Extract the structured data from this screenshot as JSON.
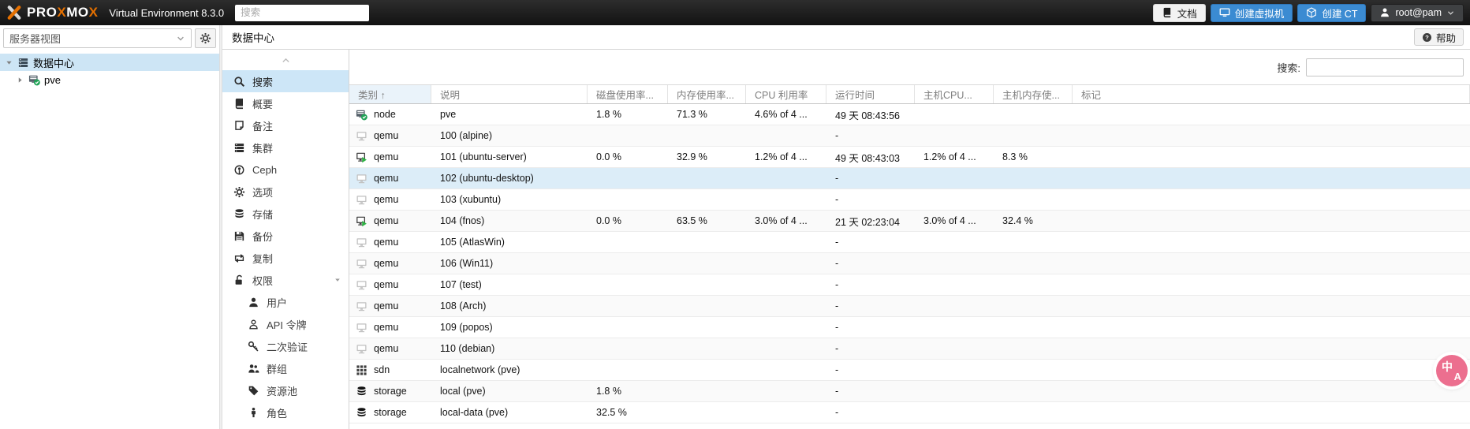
{
  "topbar": {
    "brand": {
      "mark_icon": "proxmox-logo-icon",
      "segments": [
        {
          "text": "PRO",
          "color": "#ffffff"
        },
        {
          "text": "X",
          "color": "#E57000"
        },
        {
          "text": "MO",
          "color": "#ffffff"
        },
        {
          "text": "X",
          "color": "#E57000"
        }
      ],
      "version": "Virtual Environment 8.3.0"
    },
    "search": {
      "placeholder": "搜索",
      "value": ""
    },
    "buttons": {
      "docs": {
        "label": "文档",
        "icon": "book-icon"
      },
      "create_vm": {
        "label": "创建虚拟机",
        "icon": "monitor-icon"
      },
      "create_ct": {
        "label": "创建 CT",
        "icon": "cube-icon"
      },
      "user": {
        "label": "root@pam",
        "icon": "user-icon"
      }
    }
  },
  "sidebar": {
    "view_selector": {
      "value": "服务器视图"
    },
    "tree": [
      {
        "id": "datacenter",
        "label": "数据中心",
        "icon": "datacenter-icon",
        "expander": "caret-down-icon",
        "selected": true,
        "level": 0
      },
      {
        "id": "pve",
        "label": "pve",
        "icon": "node-icon",
        "expander": "caret-right-icon",
        "selected": false,
        "level": 1
      }
    ]
  },
  "content_header": {
    "title": "数据中心",
    "help_button": {
      "label": "帮助",
      "icon": "help-icon"
    }
  },
  "menu": {
    "items": [
      {
        "id": "search",
        "label": "搜索",
        "icon": "search-icon",
        "selected": true
      },
      {
        "id": "summary",
        "label": "概要",
        "icon": "book-icon"
      },
      {
        "id": "notes",
        "label": "备注",
        "icon": "note-icon"
      },
      {
        "id": "cluster",
        "label": "集群",
        "icon": "cluster-icon"
      },
      {
        "id": "ceph",
        "label": "Ceph",
        "icon": "ceph-icon"
      },
      {
        "id": "options",
        "label": "选项",
        "icon": "gear-icon"
      },
      {
        "id": "storage",
        "label": "存储",
        "icon": "database-icon"
      },
      {
        "id": "backup",
        "label": "备份",
        "icon": "backup-icon"
      },
      {
        "id": "replication",
        "label": "复制",
        "icon": "replication-icon"
      },
      {
        "id": "permissions",
        "label": "权限",
        "icon": "unlock-icon",
        "caret": true
      },
      {
        "id": "users",
        "label": "用户",
        "icon": "user-icon",
        "child": true
      },
      {
        "id": "api-tokens",
        "label": "API 令牌",
        "icon": "user-outline-icon",
        "child": true
      },
      {
        "id": "two-factor",
        "label": "二次验证",
        "icon": "key-icon",
        "child": true
      },
      {
        "id": "groups",
        "label": "群组",
        "icon": "users-icon",
        "child": true
      },
      {
        "id": "pools",
        "label": "资源池",
        "icon": "tag-icon",
        "child": true
      },
      {
        "id": "roles",
        "label": "角色",
        "icon": "person-icon",
        "child": true
      }
    ]
  },
  "grid": {
    "filter": {
      "label": "搜索:",
      "value": ""
    },
    "columns": [
      {
        "label": "类别 ↑",
        "sorted": true
      },
      {
        "label": "说明"
      },
      {
        "label": "磁盘使用率..."
      },
      {
        "label": "内存使用率..."
      },
      {
        "label": "CPU 利用率"
      },
      {
        "label": "运行时间"
      },
      {
        "label": "主机CPU..."
      },
      {
        "label": "主机内存使..."
      },
      {
        "label": "标记"
      }
    ],
    "rows": [
      {
        "icon": "node-icon",
        "type": "node",
        "desc": "pve",
        "disk": "1.8 %",
        "mem": "71.3 %",
        "cpu": "4.6% of 4 ...",
        "uptime": "49 天 08:43:56",
        "hostcpu": "",
        "hostmem": "",
        "tags": ""
      },
      {
        "icon": "qemu-stopped-icon",
        "type": "qemu",
        "desc": "100 (alpine)",
        "disk": "",
        "mem": "",
        "cpu": "",
        "uptime": "-",
        "hostcpu": "",
        "hostmem": "",
        "tags": ""
      },
      {
        "icon": "qemu-running-icon",
        "type": "qemu",
        "desc": "101 (ubuntu-server)",
        "disk": "0.0 %",
        "mem": "32.9 %",
        "cpu": "1.2% of 4 ...",
        "uptime": "49 天 08:43:03",
        "hostcpu": "1.2% of 4 ...",
        "hostmem": "8.3 %",
        "tags": ""
      },
      {
        "icon": "qemu-stopped-icon",
        "type": "qemu",
        "desc": "102 (ubuntu-desktop)",
        "disk": "",
        "mem": "",
        "cpu": "",
        "uptime": "-",
        "hostcpu": "",
        "hostmem": "",
        "tags": "",
        "selected": true
      },
      {
        "icon": "qemu-stopped-icon",
        "type": "qemu",
        "desc": "103 (xubuntu)",
        "disk": "",
        "mem": "",
        "cpu": "",
        "uptime": "-",
        "hostcpu": "",
        "hostmem": "",
        "tags": ""
      },
      {
        "icon": "qemu-running-icon",
        "type": "qemu",
        "desc": "104 (fnos)",
        "disk": "0.0 %",
        "mem": "63.5 %",
        "cpu": "3.0% of 4 ...",
        "uptime": "21 天 02:23:04",
        "hostcpu": "3.0% of 4 ...",
        "hostmem": "32.4 %",
        "tags": ""
      },
      {
        "icon": "qemu-stopped-icon",
        "type": "qemu",
        "desc": "105 (AtlasWin)",
        "disk": "",
        "mem": "",
        "cpu": "",
        "uptime": "-",
        "hostcpu": "",
        "hostmem": "",
        "tags": ""
      },
      {
        "icon": "qemu-stopped-icon",
        "type": "qemu",
        "desc": "106 (Win11)",
        "disk": "",
        "mem": "",
        "cpu": "",
        "uptime": "-",
        "hostcpu": "",
        "hostmem": "",
        "tags": ""
      },
      {
        "icon": "qemu-stopped-icon",
        "type": "qemu",
        "desc": "107 (test)",
        "disk": "",
        "mem": "",
        "cpu": "",
        "uptime": "-",
        "hostcpu": "",
        "hostmem": "",
        "tags": ""
      },
      {
        "icon": "qemu-stopped-icon",
        "type": "qemu",
        "desc": "108 (Arch)",
        "disk": "",
        "mem": "",
        "cpu": "",
        "uptime": "-",
        "hostcpu": "",
        "hostmem": "",
        "tags": ""
      },
      {
        "icon": "qemu-stopped-icon",
        "type": "qemu",
        "desc": "109 (popos)",
        "disk": "",
        "mem": "",
        "cpu": "",
        "uptime": "-",
        "hostcpu": "",
        "hostmem": "",
        "tags": ""
      },
      {
        "icon": "qemu-stopped-icon",
        "type": "qemu",
        "desc": "110 (debian)",
        "disk": "",
        "mem": "",
        "cpu": "",
        "uptime": "-",
        "hostcpu": "",
        "hostmem": "",
        "tags": ""
      },
      {
        "icon": "sdn-icon",
        "type": "sdn",
        "desc": "localnetwork (pve)",
        "disk": "",
        "mem": "",
        "cpu": "",
        "uptime": "-",
        "hostcpu": "",
        "hostmem": "",
        "tags": ""
      },
      {
        "icon": "database-icon",
        "type": "storage",
        "desc": "local (pve)",
        "disk": "1.8 %",
        "mem": "",
        "cpu": "",
        "uptime": "-",
        "hostcpu": "",
        "hostmem": "",
        "tags": ""
      },
      {
        "icon": "database-icon",
        "type": "storage",
        "desc": "local-data (pve)",
        "disk": "32.5 %",
        "mem": "",
        "cpu": "",
        "uptime": "-",
        "hostcpu": "",
        "hostmem": "",
        "tags": ""
      }
    ]
  },
  "fab": {
    "primary": "中",
    "secondary": "A",
    "color": "#ec6f8f"
  }
}
